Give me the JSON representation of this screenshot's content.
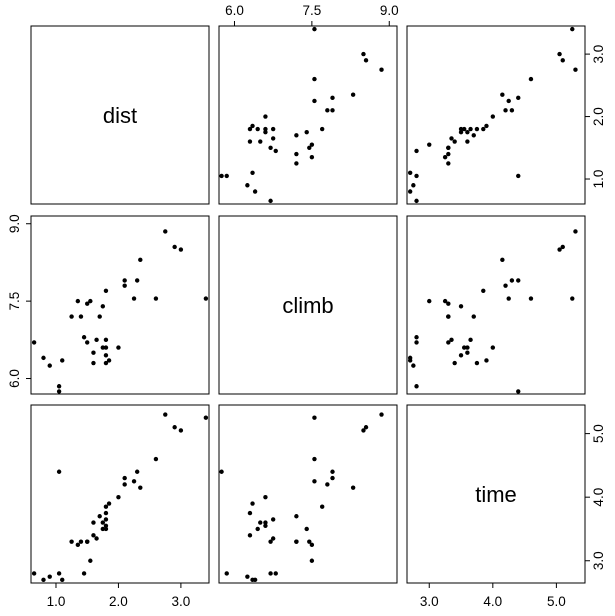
{
  "chart_data": {
    "type": "scatter",
    "variables": [
      "dist",
      "climb",
      "time"
    ],
    "ranges": {
      "dist": [
        0.6,
        3.45
      ],
      "climb": [
        5.7,
        9.15
      ],
      "time": [
        2.65,
        5.45
      ]
    },
    "ticks": {
      "dist": [
        1.0,
        2.0,
        3.0
      ],
      "climb": [
        6.0,
        7.5,
        9.0
      ],
      "time": [
        3.0,
        4.0,
        5.0
      ]
    },
    "tick_labels": {
      "dist": [
        "1.0",
        "2.0",
        "3.0"
      ],
      "climb": [
        "6.0",
        "7.5",
        "9.0"
      ],
      "time": [
        "3.0",
        "4.0",
        "5.0"
      ]
    },
    "points": [
      {
        "dist": 0.9,
        "climb": 6.25,
        "time": 2.75
      },
      {
        "dist": 0.65,
        "climb": 6.7,
        "time": 2.8
      },
      {
        "dist": 0.8,
        "climb": 6.4,
        "time": 2.7
      },
      {
        "dist": 1.1,
        "climb": 6.35,
        "time": 2.7
      },
      {
        "dist": 1.05,
        "climb": 5.85,
        "time": 2.8
      },
      {
        "dist": 1.05,
        "climb": 5.75,
        "time": 4.4
      },
      {
        "dist": 1.25,
        "climb": 7.2,
        "time": 3.3
      },
      {
        "dist": 1.35,
        "climb": 7.5,
        "time": 3.25
      },
      {
        "dist": 1.4,
        "climb": 7.2,
        "time": 3.3
      },
      {
        "dist": 1.5,
        "climb": 7.45,
        "time": 3.3
      },
      {
        "dist": 1.45,
        "climb": 6.8,
        "time": 2.8
      },
      {
        "dist": 1.5,
        "climb": 6.7,
        "time": 3.3
      },
      {
        "dist": 1.55,
        "climb": 7.5,
        "time": 3.0
      },
      {
        "dist": 1.6,
        "climb": 6.3,
        "time": 3.4
      },
      {
        "dist": 1.6,
        "climb": 6.5,
        "time": 3.6
      },
      {
        "dist": 1.65,
        "climb": 6.75,
        "time": 3.35
      },
      {
        "dist": 1.7,
        "climb": 7.2,
        "time": 3.7
      },
      {
        "dist": 1.75,
        "climb": 7.4,
        "time": 3.5
      },
      {
        "dist": 1.75,
        "climb": 6.6,
        "time": 3.6
      },
      {
        "dist": 1.8,
        "climb": 7.7,
        "time": 3.85
      },
      {
        "dist": 1.8,
        "climb": 6.75,
        "time": 3.65
      },
      {
        "dist": 1.8,
        "climb": 6.6,
        "time": 3.55
      },
      {
        "dist": 1.8,
        "climb": 6.3,
        "time": 3.75
      },
      {
        "dist": 1.8,
        "climb": 6.45,
        "time": 3.5
      },
      {
        "dist": 1.85,
        "climb": 6.35,
        "time": 3.9
      },
      {
        "dist": 2.0,
        "climb": 6.6,
        "time": 4.0
      },
      {
        "dist": 2.1,
        "climb": 7.8,
        "time": 4.2
      },
      {
        "dist": 2.1,
        "climb": 7.9,
        "time": 4.3
      },
      {
        "dist": 2.25,
        "climb": 7.55,
        "time": 4.25
      },
      {
        "dist": 2.3,
        "climb": 7.9,
        "time": 4.4
      },
      {
        "dist": 2.35,
        "climb": 8.3,
        "time": 4.15
      },
      {
        "dist": 2.6,
        "climb": 7.55,
        "time": 4.6
      },
      {
        "dist": 2.75,
        "climb": 8.85,
        "time": 5.3
      },
      {
        "dist": 2.9,
        "climb": 8.55,
        "time": 5.1
      },
      {
        "dist": 3.0,
        "climb": 8.5,
        "time": 5.05
      },
      {
        "dist": 3.4,
        "climb": 7.55,
        "time": 5.25
      }
    ]
  }
}
